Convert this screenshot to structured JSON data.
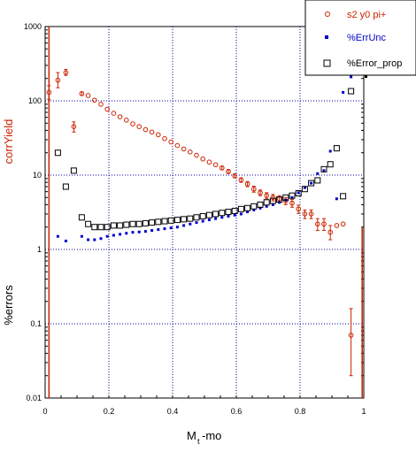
{
  "chart_data": {
    "type": "scatter",
    "xlabel": "M",
    "xlabel_sub": "t",
    "xlabel_suffix": "-mo",
    "ylabel_top": "corrYield",
    "ylabel_bottom": "%errors",
    "xlim": [
      0,
      1
    ],
    "ylim": [
      0.01,
      1000
    ],
    "yscale": "log",
    "grid": true,
    "legend_position": "top-right",
    "x_ticks": [
      "0",
      "0.2",
      "0.4",
      "0.6",
      "0.8",
      "1"
    ],
    "x_tick_values": [
      0,
      0.2,
      0.4,
      0.6,
      0.8,
      1
    ],
    "y_ticks": [
      "0.01",
      "0.1",
      "1",
      "10",
      "100",
      "1000"
    ],
    "y_tick_values": [
      0.01,
      0.1,
      1,
      10,
      100,
      1000
    ],
    "colors": {
      "corr": "#cc2200",
      "errunc": "#0000cc",
      "errprop": "#000000",
      "grid": "#0000aa",
      "frame": "#000000",
      "ylabel_top": "#cc2200",
      "ylabel_bottom": "#000000"
    },
    "series": [
      {
        "name": "s2 y0 pi+",
        "marker": "circle",
        "color": "#cc2200",
        "x": [
          0.012,
          0.04,
          0.065,
          0.09,
          0.115,
          0.135,
          0.155,
          0.175,
          0.195,
          0.215,
          0.235,
          0.255,
          0.275,
          0.295,
          0.315,
          0.335,
          0.355,
          0.375,
          0.395,
          0.415,
          0.435,
          0.455,
          0.475,
          0.495,
          0.515,
          0.535,
          0.555,
          0.575,
          0.595,
          0.615,
          0.635,
          0.655,
          0.675,
          0.695,
          0.715,
          0.735,
          0.755,
          0.775,
          0.795,
          0.815,
          0.835,
          0.855,
          0.875,
          0.895,
          0.915,
          0.935,
          0.96
        ],
        "y": [
          130,
          190,
          240,
          45,
          125,
          118,
          102,
          90,
          77,
          68,
          61,
          55,
          49,
          45,
          41,
          38,
          35,
          31,
          28,
          25,
          22.5,
          20.5,
          18.5,
          16.5,
          15,
          13.8,
          12.5,
          11.2,
          9.8,
          8.6,
          7.6,
          6.5,
          5.8,
          5.3,
          5.0,
          4.8,
          4.5,
          4.2,
          3.5,
          3.0,
          3.0,
          2.2,
          2.2,
          1.7,
          2.1,
          2.2,
          0.07
        ],
        "err_hi": [
          160,
          240,
          265,
          52,
          132,
          124,
          107,
          94,
          80,
          71,
          63,
          57,
          51,
          47,
          43,
          39.5,
          36.5,
          32.5,
          29.2,
          26,
          23.5,
          21.4,
          19.3,
          17.3,
          15.8,
          14.5,
          13.2,
          11.9,
          10.4,
          9.2,
          8.2,
          7.1,
          6.3,
          5.8,
          5.5,
          5.3,
          5.0,
          4.7,
          3.95,
          3.4,
          3.4,
          2.6,
          2.6,
          2.1,
          2.2,
          2.3,
          0.16
        ],
        "err_lo": [
          105,
          150,
          220,
          38,
          118,
          112,
          97,
          86,
          74,
          65,
          59,
          53,
          47,
          43,
          39,
          36.5,
          33.5,
          29.5,
          26.8,
          24,
          21.5,
          19.6,
          17.7,
          15.7,
          14.2,
          13.1,
          11.8,
          10.5,
          9.2,
          8.0,
          7.0,
          5.9,
          5.3,
          4.8,
          4.5,
          4.3,
          4.0,
          3.7,
          3.05,
          2.6,
          2.6,
          1.8,
          1.8,
          1.35,
          2.0,
          2.1,
          0.02
        ]
      },
      {
        "name": "%ErrUnc",
        "marker": "square-small",
        "color": "#0000cc",
        "x": [
          0.04,
          0.065,
          0.115,
          0.135,
          0.155,
          0.175,
          0.195,
          0.215,
          0.235,
          0.255,
          0.275,
          0.295,
          0.315,
          0.335,
          0.355,
          0.375,
          0.395,
          0.415,
          0.435,
          0.455,
          0.475,
          0.495,
          0.515,
          0.535,
          0.555,
          0.575,
          0.595,
          0.615,
          0.635,
          0.655,
          0.675,
          0.695,
          0.715,
          0.735,
          0.755,
          0.775,
          0.795,
          0.815,
          0.835,
          0.855,
          0.875,
          0.895,
          0.915,
          0.935,
          0.96
        ],
        "y": [
          1.5,
          1.3,
          1.5,
          1.35,
          1.35,
          1.4,
          1.5,
          1.55,
          1.6,
          1.65,
          1.7,
          1.72,
          1.75,
          1.8,
          1.85,
          1.9,
          1.95,
          2.0,
          2.1,
          2.2,
          2.3,
          2.4,
          2.5,
          2.6,
          2.7,
          2.8,
          2.9,
          3.0,
          3.2,
          3.4,
          3.6,
          3.8,
          4.0,
          4.3,
          4.6,
          5.0,
          5.8,
          6.8,
          7.8,
          10.5,
          11.5,
          21,
          4.8,
          130,
          210
        ]
      },
      {
        "name": "%Error_prop",
        "marker": "square-open",
        "color": "#000000",
        "x": [
          0.04,
          0.065,
          0.09,
          0.115,
          0.135,
          0.155,
          0.175,
          0.195,
          0.215,
          0.235,
          0.255,
          0.275,
          0.295,
          0.315,
          0.335,
          0.355,
          0.375,
          0.395,
          0.415,
          0.435,
          0.455,
          0.475,
          0.495,
          0.515,
          0.535,
          0.555,
          0.575,
          0.595,
          0.615,
          0.635,
          0.655,
          0.675,
          0.695,
          0.715,
          0.735,
          0.755,
          0.775,
          0.795,
          0.815,
          0.835,
          0.855,
          0.875,
          0.895,
          0.915,
          0.935,
          0.96
        ],
        "y": [
          20,
          7,
          11.5,
          2.7,
          2.2,
          2.0,
          2.0,
          2.0,
          2.1,
          2.1,
          2.15,
          2.2,
          2.2,
          2.25,
          2.3,
          2.35,
          2.4,
          2.45,
          2.5,
          2.55,
          2.6,
          2.7,
          2.8,
          2.9,
          3.0,
          3.1,
          3.2,
          3.3,
          3.5,
          3.6,
          3.8,
          4.0,
          4.3,
          4.5,
          4.7,
          5.0,
          5.3,
          5.7,
          6.5,
          7.8,
          8.5,
          12,
          14,
          23,
          5.2,
          135
        ]
      }
    ]
  }
}
